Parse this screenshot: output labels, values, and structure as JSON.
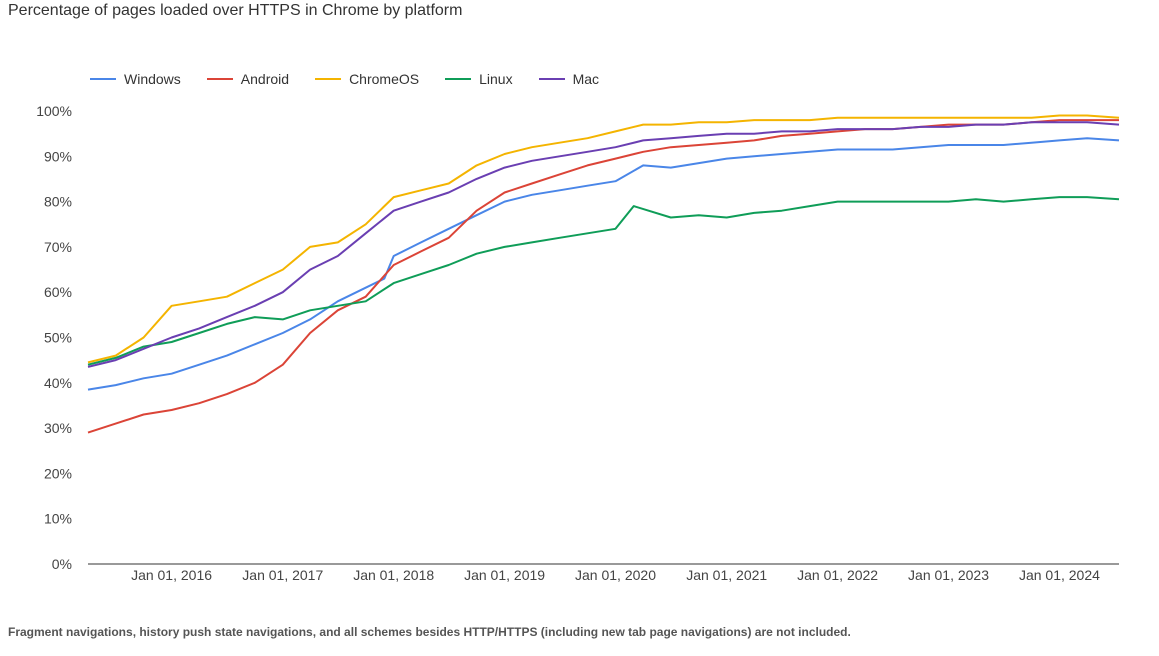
{
  "chart_data": {
    "type": "line",
    "title": "Percentage of pages loaded over HTTPS in Chrome by platform",
    "footnote": "Fragment navigations, history push state navigations, and all schemes besides HTTP/HTTPS (including new tab page navigations) are not included.",
    "xlabel": "",
    "ylabel": "",
    "x_range": [
      "2015-04-01",
      "2024-07-15"
    ],
    "ylim": [
      0,
      100
    ],
    "y_ticks": [
      0,
      10,
      20,
      30,
      40,
      50,
      60,
      70,
      80,
      90,
      100
    ],
    "y_tick_labels": [
      "0%",
      "10%",
      "20%",
      "30%",
      "40%",
      "50%",
      "60%",
      "70%",
      "80%",
      "90%",
      "100%"
    ],
    "x_ticks": [
      "2016-01-01",
      "2017-01-01",
      "2018-01-01",
      "2019-01-01",
      "2020-01-01",
      "2021-01-01",
      "2022-01-01",
      "2023-01-01",
      "2024-01-01"
    ],
    "x_tick_labels": [
      "Jan 01, 2016",
      "Jan 01, 2017",
      "Jan 01, 2018",
      "Jan 01, 2019",
      "Jan 01, 2020",
      "Jan 01, 2021",
      "Jan 01, 2022",
      "Jan 01, 2023",
      "Jan 01, 2024"
    ],
    "grid": false,
    "legend": "top-left",
    "series": [
      {
        "name": "Windows",
        "color": "#4a86e8",
        "points": [
          [
            "2015-04-01",
            38.5
          ],
          [
            "2015-07-01",
            39.5
          ],
          [
            "2015-10-01",
            41
          ],
          [
            "2016-01-01",
            42
          ],
          [
            "2016-04-01",
            44
          ],
          [
            "2016-07-01",
            46
          ],
          [
            "2016-10-01",
            48.5
          ],
          [
            "2017-01-01",
            51
          ],
          [
            "2017-04-01",
            54
          ],
          [
            "2017-07-01",
            58
          ],
          [
            "2017-10-01",
            61
          ],
          [
            "2017-12-01",
            63
          ],
          [
            "2018-01-01",
            68
          ],
          [
            "2018-04-01",
            71
          ],
          [
            "2018-07-01",
            74
          ],
          [
            "2018-10-01",
            77
          ],
          [
            "2019-01-01",
            80
          ],
          [
            "2019-04-01",
            81.5
          ],
          [
            "2019-07-01",
            82.5
          ],
          [
            "2019-10-01",
            83.5
          ],
          [
            "2020-01-01",
            84.5
          ],
          [
            "2020-04-01",
            88
          ],
          [
            "2020-07-01",
            87.5
          ],
          [
            "2020-10-01",
            88.5
          ],
          [
            "2021-01-01",
            89.5
          ],
          [
            "2021-04-01",
            90
          ],
          [
            "2021-07-01",
            90.5
          ],
          [
            "2021-10-01",
            91
          ],
          [
            "2022-01-01",
            91.5
          ],
          [
            "2022-04-01",
            91.5
          ],
          [
            "2022-07-01",
            91.5
          ],
          [
            "2022-10-01",
            92
          ],
          [
            "2023-01-01",
            92.5
          ],
          [
            "2023-04-01",
            92.5
          ],
          [
            "2023-07-01",
            92.5
          ],
          [
            "2023-10-01",
            93
          ],
          [
            "2024-01-01",
            93.5
          ],
          [
            "2024-04-01",
            94
          ],
          [
            "2024-07-15",
            93.5
          ]
        ]
      },
      {
        "name": "Android",
        "color": "#db4437",
        "points": [
          [
            "2015-04-01",
            29
          ],
          [
            "2015-07-01",
            31
          ],
          [
            "2015-10-01",
            33
          ],
          [
            "2016-01-01",
            34
          ],
          [
            "2016-04-01",
            35.5
          ],
          [
            "2016-07-01",
            37.5
          ],
          [
            "2016-10-01",
            40
          ],
          [
            "2017-01-01",
            44
          ],
          [
            "2017-04-01",
            51
          ],
          [
            "2017-07-01",
            56
          ],
          [
            "2017-10-01",
            59
          ],
          [
            "2018-01-01",
            66
          ],
          [
            "2018-04-01",
            69
          ],
          [
            "2018-07-01",
            72
          ],
          [
            "2018-10-01",
            78
          ],
          [
            "2019-01-01",
            82
          ],
          [
            "2019-04-01",
            84
          ],
          [
            "2019-07-01",
            86
          ],
          [
            "2019-10-01",
            88
          ],
          [
            "2020-01-01",
            89.5
          ],
          [
            "2020-04-01",
            91
          ],
          [
            "2020-07-01",
            92
          ],
          [
            "2020-10-01",
            92.5
          ],
          [
            "2021-01-01",
            93
          ],
          [
            "2021-04-01",
            93.5
          ],
          [
            "2021-07-01",
            94.5
          ],
          [
            "2021-10-01",
            95
          ],
          [
            "2022-01-01",
            95.5
          ],
          [
            "2022-04-01",
            96
          ],
          [
            "2022-07-01",
            96
          ],
          [
            "2022-10-01",
            96.5
          ],
          [
            "2023-01-01",
            97
          ],
          [
            "2023-04-01",
            97
          ],
          [
            "2023-07-01",
            97
          ],
          [
            "2023-10-01",
            97.5
          ],
          [
            "2024-01-01",
            98
          ],
          [
            "2024-04-01",
            98
          ],
          [
            "2024-07-15",
            98
          ]
        ]
      },
      {
        "name": "ChromeOS",
        "color": "#f4b400",
        "points": [
          [
            "2015-04-01",
            44.5
          ],
          [
            "2015-07-01",
            46
          ],
          [
            "2015-10-01",
            50
          ],
          [
            "2016-01-01",
            57
          ],
          [
            "2016-04-01",
            58
          ],
          [
            "2016-07-01",
            59
          ],
          [
            "2016-10-01",
            62
          ],
          [
            "2017-01-01",
            65
          ],
          [
            "2017-04-01",
            70
          ],
          [
            "2017-07-01",
            71
          ],
          [
            "2017-10-01",
            75
          ],
          [
            "2018-01-01",
            81
          ],
          [
            "2018-04-01",
            82.5
          ],
          [
            "2018-07-01",
            84
          ],
          [
            "2018-10-01",
            88
          ],
          [
            "2019-01-01",
            90.5
          ],
          [
            "2019-04-01",
            92
          ],
          [
            "2019-07-01",
            93
          ],
          [
            "2019-10-01",
            94
          ],
          [
            "2020-01-01",
            95.5
          ],
          [
            "2020-04-01",
            97
          ],
          [
            "2020-07-01",
            97
          ],
          [
            "2020-10-01",
            97.5
          ],
          [
            "2021-01-01",
            97.5
          ],
          [
            "2021-04-01",
            98
          ],
          [
            "2021-07-01",
            98
          ],
          [
            "2021-10-01",
            98
          ],
          [
            "2022-01-01",
            98.5
          ],
          [
            "2022-04-01",
            98.5
          ],
          [
            "2022-07-01",
            98.5
          ],
          [
            "2022-10-01",
            98.5
          ],
          [
            "2023-01-01",
            98.5
          ],
          [
            "2023-04-01",
            98.5
          ],
          [
            "2023-07-01",
            98.5
          ],
          [
            "2023-10-01",
            98.5
          ],
          [
            "2024-01-01",
            99
          ],
          [
            "2024-04-01",
            99
          ],
          [
            "2024-07-15",
            98.5
          ]
        ]
      },
      {
        "name": "Linux",
        "color": "#0f9d58",
        "points": [
          [
            "2015-04-01",
            44
          ],
          [
            "2015-07-01",
            45.5
          ],
          [
            "2015-10-01",
            48
          ],
          [
            "2016-01-01",
            49
          ],
          [
            "2016-04-01",
            51
          ],
          [
            "2016-07-01",
            53
          ],
          [
            "2016-10-01",
            54.5
          ],
          [
            "2017-01-01",
            54
          ],
          [
            "2017-04-01",
            56
          ],
          [
            "2017-07-01",
            57
          ],
          [
            "2017-10-01",
            58
          ],
          [
            "2018-01-01",
            62
          ],
          [
            "2018-04-01",
            64
          ],
          [
            "2018-07-01",
            66
          ],
          [
            "2018-10-01",
            68.5
          ],
          [
            "2019-01-01",
            70
          ],
          [
            "2019-04-01",
            71
          ],
          [
            "2019-07-01",
            72
          ],
          [
            "2019-10-01",
            73
          ],
          [
            "2020-01-01",
            74
          ],
          [
            "2020-03-01",
            79
          ],
          [
            "2020-07-01",
            76.5
          ],
          [
            "2020-10-01",
            77
          ],
          [
            "2021-01-01",
            76.5
          ],
          [
            "2021-04-01",
            77.5
          ],
          [
            "2021-07-01",
            78
          ],
          [
            "2021-10-01",
            79
          ],
          [
            "2022-01-01",
            80
          ],
          [
            "2022-04-01",
            80
          ],
          [
            "2022-07-01",
            80
          ],
          [
            "2022-10-01",
            80
          ],
          [
            "2023-01-01",
            80
          ],
          [
            "2023-04-01",
            80.5
          ],
          [
            "2023-07-01",
            80
          ],
          [
            "2023-10-01",
            80.5
          ],
          [
            "2024-01-01",
            81
          ],
          [
            "2024-04-01",
            81
          ],
          [
            "2024-07-15",
            80.5
          ]
        ]
      },
      {
        "name": "Mac",
        "color": "#6a3fb2",
        "points": [
          [
            "2015-04-01",
            43.5
          ],
          [
            "2015-07-01",
            45
          ],
          [
            "2015-10-01",
            47.5
          ],
          [
            "2016-01-01",
            50
          ],
          [
            "2016-04-01",
            52
          ],
          [
            "2016-07-01",
            54.5
          ],
          [
            "2016-10-01",
            57
          ],
          [
            "2017-01-01",
            60
          ],
          [
            "2017-04-01",
            65
          ],
          [
            "2017-07-01",
            68
          ],
          [
            "2017-10-01",
            73
          ],
          [
            "2018-01-01",
            78
          ],
          [
            "2018-04-01",
            80
          ],
          [
            "2018-07-01",
            82
          ],
          [
            "2018-10-01",
            85
          ],
          [
            "2019-01-01",
            87.5
          ],
          [
            "2019-04-01",
            89
          ],
          [
            "2019-07-01",
            90
          ],
          [
            "2019-10-01",
            91
          ],
          [
            "2020-01-01",
            92
          ],
          [
            "2020-04-01",
            93.5
          ],
          [
            "2020-07-01",
            94
          ],
          [
            "2020-10-01",
            94.5
          ],
          [
            "2021-01-01",
            95
          ],
          [
            "2021-04-01",
            95
          ],
          [
            "2021-07-01",
            95.5
          ],
          [
            "2021-10-01",
            95.5
          ],
          [
            "2022-01-01",
            96
          ],
          [
            "2022-04-01",
            96
          ],
          [
            "2022-07-01",
            96
          ],
          [
            "2022-10-01",
            96.5
          ],
          [
            "2023-01-01",
            96.5
          ],
          [
            "2023-04-01",
            97
          ],
          [
            "2023-07-01",
            97
          ],
          [
            "2023-10-01",
            97.5
          ],
          [
            "2024-01-01",
            97.5
          ],
          [
            "2024-04-01",
            97.5
          ],
          [
            "2024-07-15",
            97
          ]
        ]
      }
    ]
  }
}
